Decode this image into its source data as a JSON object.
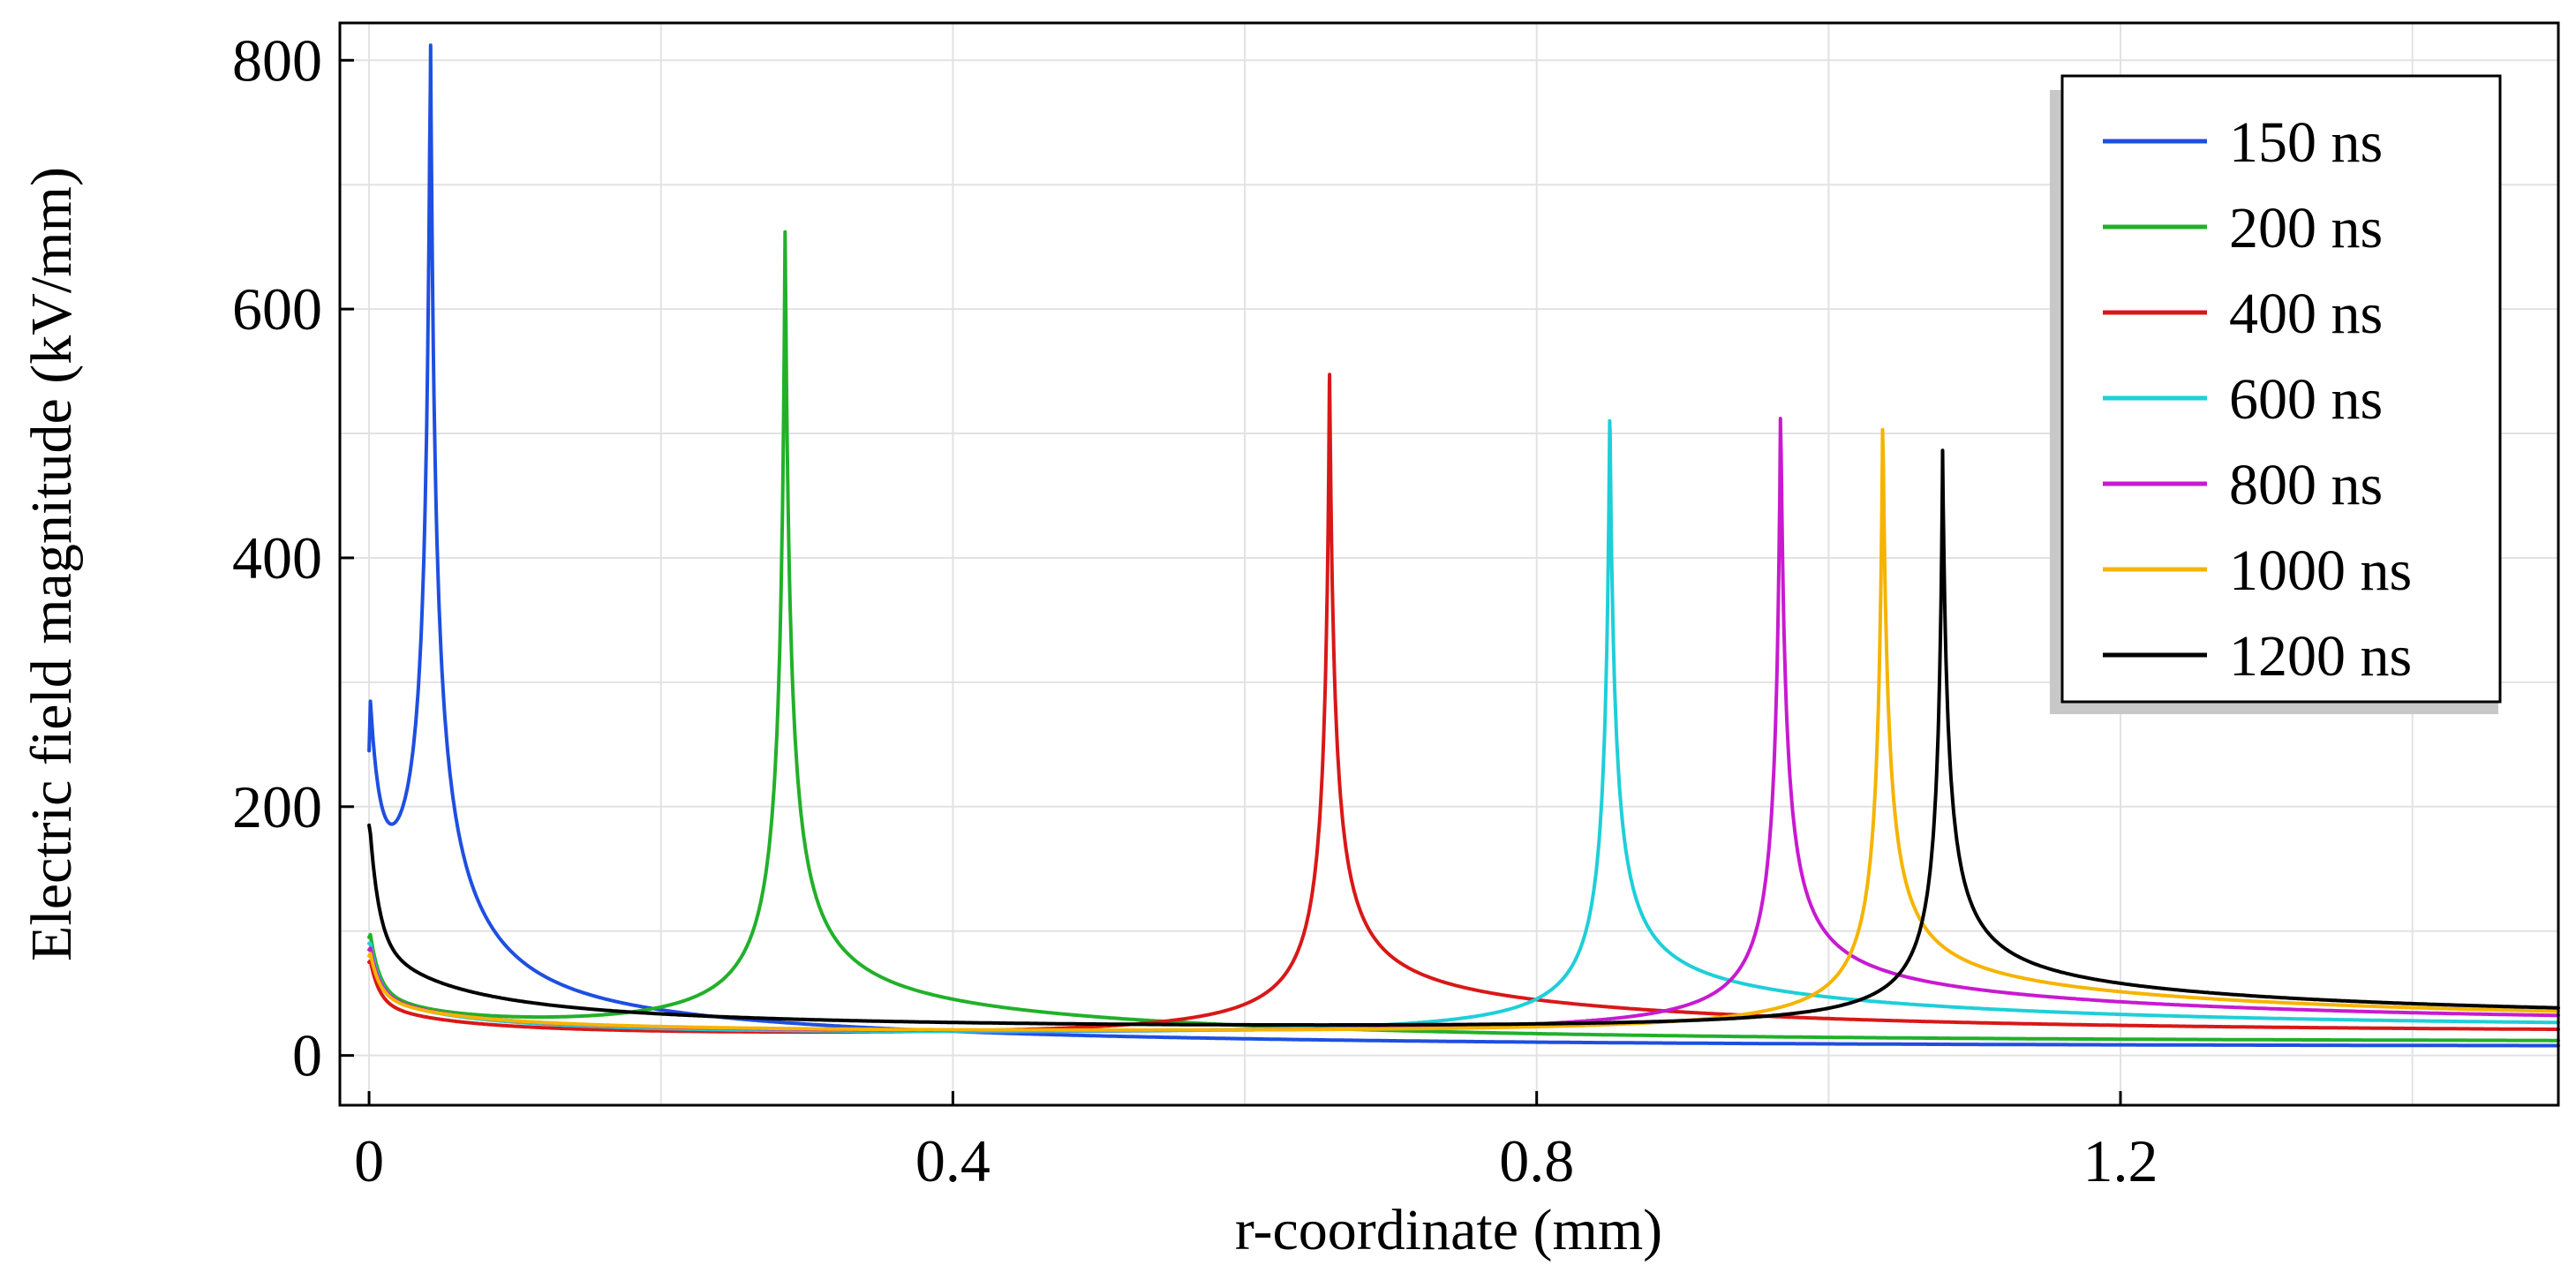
{
  "chart_data": {
    "type": "line",
    "xlabel": "r-coordinate (mm)",
    "ylabel": "Electric field magnitude (kV/mm)",
    "xlim": [
      -0.02,
      1.5
    ],
    "ylim": [
      -40,
      830
    ],
    "xticks": [
      0,
      0.4,
      0.8,
      1.2
    ],
    "xtick_labels": [
      "0",
      "0.4",
      "0.8",
      "1.2"
    ],
    "yticks": [
      0,
      200,
      400,
      600,
      800
    ],
    "ytick_labels": [
      "0",
      "200",
      "400",
      "600",
      "800"
    ],
    "grid": true,
    "legend_position": "top-right",
    "series": [
      {
        "name": "150 ns",
        "color": "#1f4fe0",
        "peak_r": 0.042,
        "peak_value": 780,
        "start_value": 245,
        "tail_value": 3
      },
      {
        "name": "200 ns",
        "color": "#22b02a",
        "peak_r": 0.285,
        "peak_value": 662,
        "start_value": 95,
        "tail_value": 5
      },
      {
        "name": "400 ns",
        "color": "#d81818",
        "peak_r": 0.658,
        "peak_value": 540,
        "start_value": 75,
        "tail_value": 9
      },
      {
        "name": "600 ns",
        "color": "#1ecfd8",
        "peak_r": 0.85,
        "peak_value": 510,
        "start_value": 90,
        "tail_value": 11
      },
      {
        "name": "800 ns",
        "color": "#c81ad0",
        "peak_r": 0.967,
        "peak_value": 512,
        "start_value": 85,
        "tail_value": 13
      },
      {
        "name": "1000 ns",
        "color": "#f5b400",
        "peak_r": 1.037,
        "peak_value": 503,
        "start_value": 80,
        "tail_value": 14
      },
      {
        "name": "1200 ns",
        "color": "#000000",
        "peak_r": 1.078,
        "peak_value": 463,
        "start_value": 185,
        "tail_value": 15
      }
    ]
  }
}
